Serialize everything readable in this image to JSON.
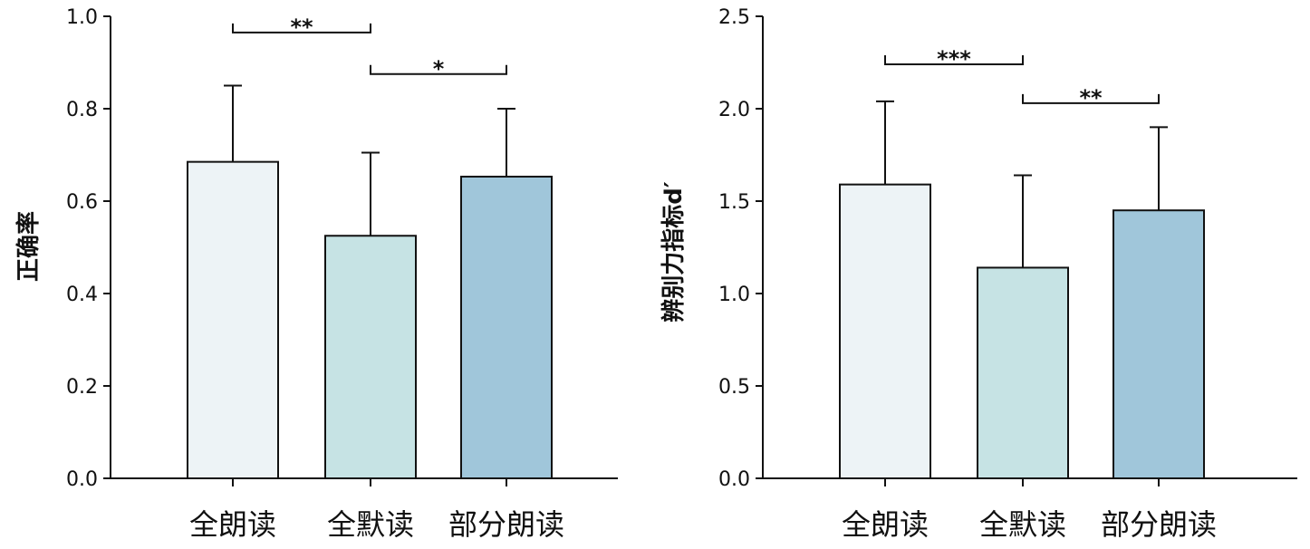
{
  "chart_data": [
    {
      "type": "bar",
      "title": "",
      "xlabel": "",
      "ylabel": "正确率",
      "categories": [
        "全朗读",
        "全默读",
        "部分朗读"
      ],
      "values": [
        0.685,
        0.525,
        0.653
      ],
      "error_upper": [
        0.85,
        0.705,
        0.8
      ],
      "ylim": [
        0.0,
        1.0
      ],
      "yticks": [
        0.0,
        0.2,
        0.4,
        0.6,
        0.8,
        1.0
      ],
      "ytick_labels": [
        "0.0",
        "0.2",
        "0.4",
        "0.6",
        "0.8",
        "1.0"
      ],
      "bar_colors": [
        "#edf3f6",
        "#c6e3e4",
        "#a0c6da"
      ],
      "significance": [
        {
          "from": 0,
          "to": 1,
          "label": "**",
          "y": 0.965
        },
        {
          "from": 1,
          "to": 2,
          "label": "*",
          "y": 0.875
        }
      ],
      "grid": false
    },
    {
      "type": "bar",
      "title": "",
      "xlabel": "",
      "ylabel": "辨别力指标d′",
      "categories": [
        "全朗读",
        "全默读",
        "部分朗读"
      ],
      "values": [
        1.59,
        1.14,
        1.45
      ],
      "error_upper": [
        2.04,
        1.64,
        1.9
      ],
      "ylim": [
        0.0,
        2.5
      ],
      "yticks": [
        0.0,
        0.5,
        1.0,
        1.5,
        2.0,
        2.5
      ],
      "ytick_labels": [
        "0.0",
        "0.5",
        "1.0",
        "1.5",
        "2.0",
        "2.5"
      ],
      "bar_colors": [
        "#edf3f6",
        "#c6e3e4",
        "#a0c6da"
      ],
      "significance": [
        {
          "from": 0,
          "to": 1,
          "label": "***",
          "y": 2.24
        },
        {
          "from": 1,
          "to": 2,
          "label": "**",
          "y": 2.03
        }
      ],
      "grid": false
    }
  ]
}
